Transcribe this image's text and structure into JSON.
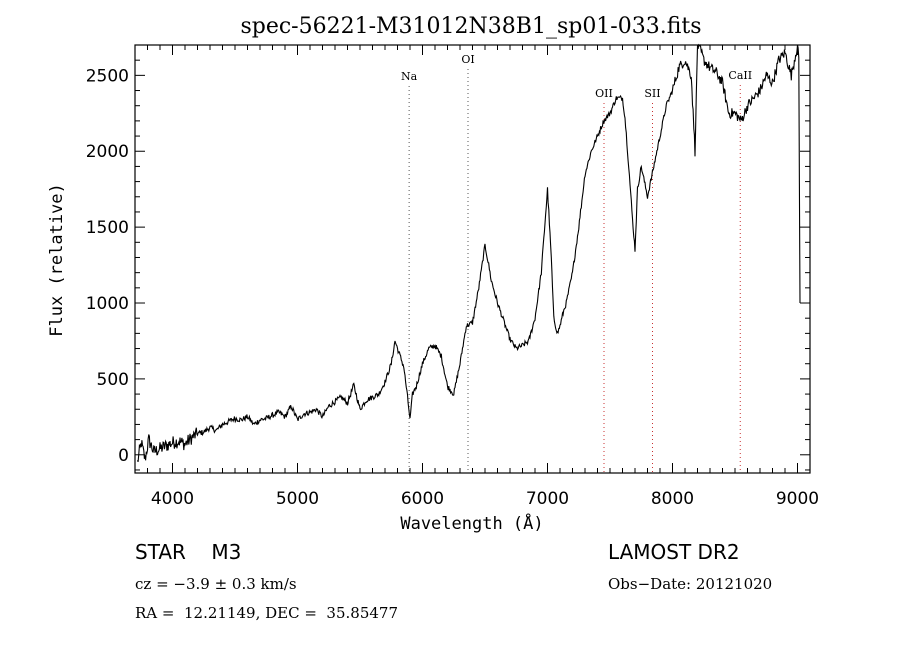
{
  "chart_data": {
    "type": "line",
    "title": "spec-56221-M31012N38B1_sp01-033.fits",
    "xlabel": "Wavelength (Å)",
    "ylabel": "Flux (relative)",
    "xlim": [
      3700,
      9100
    ],
    "ylim": [
      -120,
      2700
    ],
    "xticks": [
      4000,
      5000,
      6000,
      7000,
      8000,
      9000
    ],
    "yticks": [
      0,
      500,
      1000,
      1500,
      2000,
      2500
    ],
    "grid": false,
    "line_color": "#000000",
    "marker_colors": {
      "Na": "#555555",
      "OI": "#555555",
      "OII": "#c83030",
      "SII": "#c83030",
      "CaII": "#c83030"
    },
    "lines": [
      {
        "label": "Na",
        "x": 5893
      },
      {
        "label": "OI",
        "x": 6364
      },
      {
        "label": "OII",
        "x": 7452
      },
      {
        "label": "SII",
        "x": 7840
      },
      {
        "label": "CaII",
        "x": 8542
      }
    ],
    "series": [
      {
        "x": [
          3720,
          3750,
          3780,
          3810,
          3850,
          3900,
          3950,
          4000,
          4050,
          4100,
          4150,
          4200,
          4250,
          4300,
          4350,
          4400,
          4450,
          4500,
          4550,
          4600,
          4650,
          4700,
          4750,
          4800,
          4850,
          4900,
          4950,
          5000,
          5050,
          5100,
          5150,
          5200,
          5250,
          5300,
          5350,
          5400,
          5450,
          5500,
          5550,
          5600,
          5650,
          5700,
          5750,
          5780,
          5800,
          5850,
          5880,
          5900,
          5920,
          5950,
          6000,
          6050,
          6100,
          6150,
          6200,
          6250,
          6300,
          6350,
          6400,
          6450,
          6500,
          6530,
          6550,
          6600,
          6650,
          6700,
          6750,
          6800,
          6850,
          6900,
          6950,
          7000,
          7030,
          7050,
          7080,
          7100,
          7130,
          7150,
          7200,
          7250,
          7300,
          7350,
          7400,
          7450,
          7500,
          7550,
          7600,
          7620,
          7650,
          7680,
          7700,
          7720,
          7750,
          7800,
          7850,
          7900,
          7950,
          8000,
          8050,
          8100,
          8150,
          8180,
          8200,
          8230,
          8250,
          8300,
          8350,
          8400,
          8450,
          8500,
          8550,
          8600,
          8650,
          8700,
          8750,
          8800,
          8850,
          8900,
          8950,
          9000,
          9010,
          9020
        ],
        "y": [
          -50,
          80,
          -30,
          100,
          20,
          40,
          60,
          80,
          90,
          70,
          110,
          140,
          150,
          180,
          160,
          200,
          220,
          240,
          230,
          250,
          200,
          230,
          240,
          260,
          280,
          250,
          320,
          230,
          270,
          280,
          300,
          250,
          320,
          350,
          380,
          340,
          460,
          300,
          360,
          380,
          400,
          480,
          600,
          750,
          700,
          580,
          380,
          230,
          400,
          450,
          600,
          700,
          720,
          650,
          450,
          400,
          600,
          850,
          870,
          1100,
          1380,
          1250,
          1150,
          1000,
          880,
          760,
          700,
          720,
          750,
          900,
          1200,
          1750,
          1300,
          900,
          800,
          850,
          950,
          1000,
          1200,
          1500,
          1850,
          2000,
          2100,
          2200,
          2250,
          2350,
          2350,
          2220,
          1900,
          1550,
          1350,
          1750,
          1900,
          1700,
          1900,
          2100,
          2300,
          2400,
          2550,
          2600,
          2500,
          2000,
          2700,
          2650,
          2600,
          2550,
          2520,
          2450,
          2250,
          2250,
          2200,
          2300,
          2350,
          2400,
          2500,
          2450,
          2600,
          2650,
          2500,
          2700,
          2600,
          1000
        ]
      }
    ]
  },
  "info": {
    "object_line": "STAR    M3",
    "survey": "LAMOST DR2",
    "cz": "cz = −3.9 ± 0.3 km/s",
    "obs_date": "Obs−Date: 20121020",
    "radec": "RA =  12.21149, DEC =  35.85477"
  }
}
